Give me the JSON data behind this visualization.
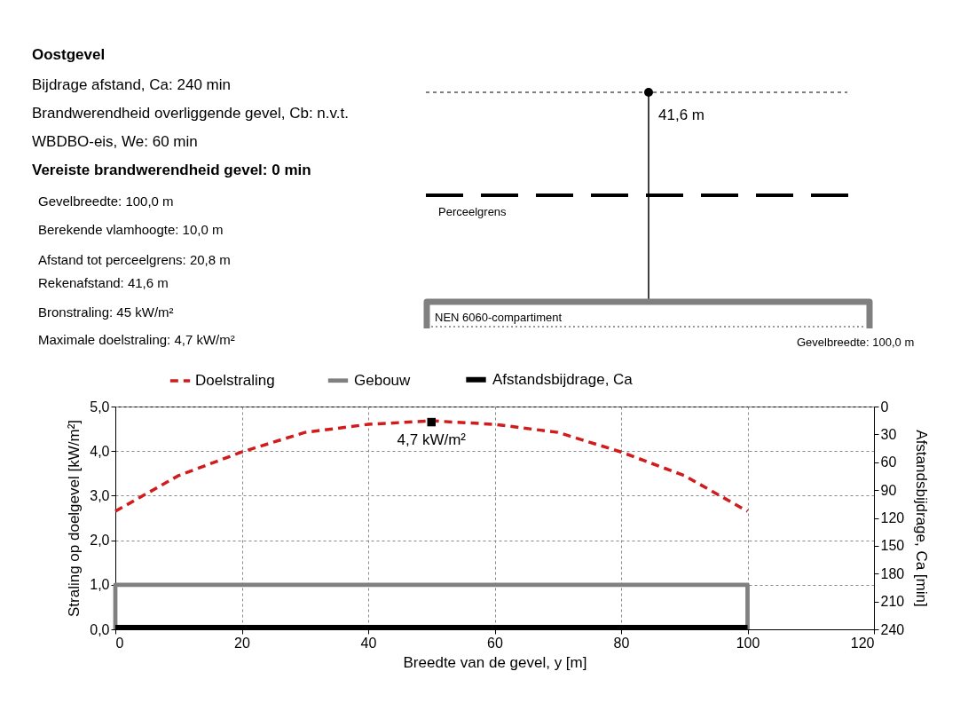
{
  "chart_data": {
    "type": "line",
    "title": "Oostgevel",
    "annotations": [
      "Bijdrage afstand, Ca: 240 min",
      "Brandwerendheid overliggende gevel, Cb: n.v.t.",
      "WBDBO-eis, We: 60 min",
      "Vereiste brandwerendheid gevel: 0 min",
      "Gevelbreedte: 100,0 m",
      "Berekende vlamhoogte: 10,0 m",
      "Afstand tot perceelgrens: 20,8 m",
      "Rekenafstand: 41,6 m",
      "Bronstraling: 45 kW/m²",
      "Maximale doelstraling: 4,7 kW/m²",
      "41,6 m",
      "Perceelgrens",
      "NEN 6060-compartiment",
      "Gevelbreedte:  100,0 m",
      {
        "text": "4,7 kW/m²",
        "x": 50,
        "y": 4.65
      }
    ],
    "xlabel": "Breedte van de gevel, y [m]",
    "ylabel": "Straling op doelgevel [kW/m²]",
    "y2label": "Afstandsbijdrage, Ca [min]",
    "xlim": [
      0,
      120
    ],
    "xticks": [
      0,
      20,
      40,
      60,
      80,
      100,
      120
    ],
    "ylim": [
      0,
      5
    ],
    "yticks": [
      {
        "value": 0,
        "label": "0,0"
      },
      {
        "value": 1,
        "label": "1,0"
      },
      {
        "value": 2,
        "label": "2,0"
      },
      {
        "value": 3,
        "label": "3,0"
      },
      {
        "value": 4,
        "label": "4,0"
      },
      {
        "value": 5,
        "label": "5,0"
      }
    ],
    "y2lim": [
      240,
      0
    ],
    "y2ticks": [
      0,
      30,
      60,
      90,
      120,
      150,
      180,
      210,
      240
    ],
    "grid": true,
    "legend": "top",
    "series": [
      {
        "name": "Doelstraling",
        "color": "#d01c1c",
        "line_style": "dashed",
        "x": [
          0,
          10,
          20,
          30,
          40,
          50,
          60,
          70,
          80,
          90,
          100
        ],
        "values": [
          2.65,
          3.45,
          3.98,
          4.42,
          4.6,
          4.68,
          4.6,
          4.42,
          3.98,
          3.45,
          2.65
        ]
      },
      {
        "name": "Gebouw",
        "color": "#808080",
        "line_style": "solid",
        "x": [
          0,
          0,
          100,
          100
        ],
        "values": [
          0,
          1.0,
          1.0,
          0
        ]
      },
      {
        "name": "Afstandsbijdrage, Ca",
        "color": "#000000",
        "line_style": "solid",
        "axis": "y2",
        "x": [
          0,
          100
        ],
        "values": [
          238,
          238
        ]
      },
      {
        "type": "scatter",
        "color": "#000000",
        "marker": "square",
        "x": [
          50
        ],
        "values": [
          4.65
        ]
      }
    ]
  }
}
